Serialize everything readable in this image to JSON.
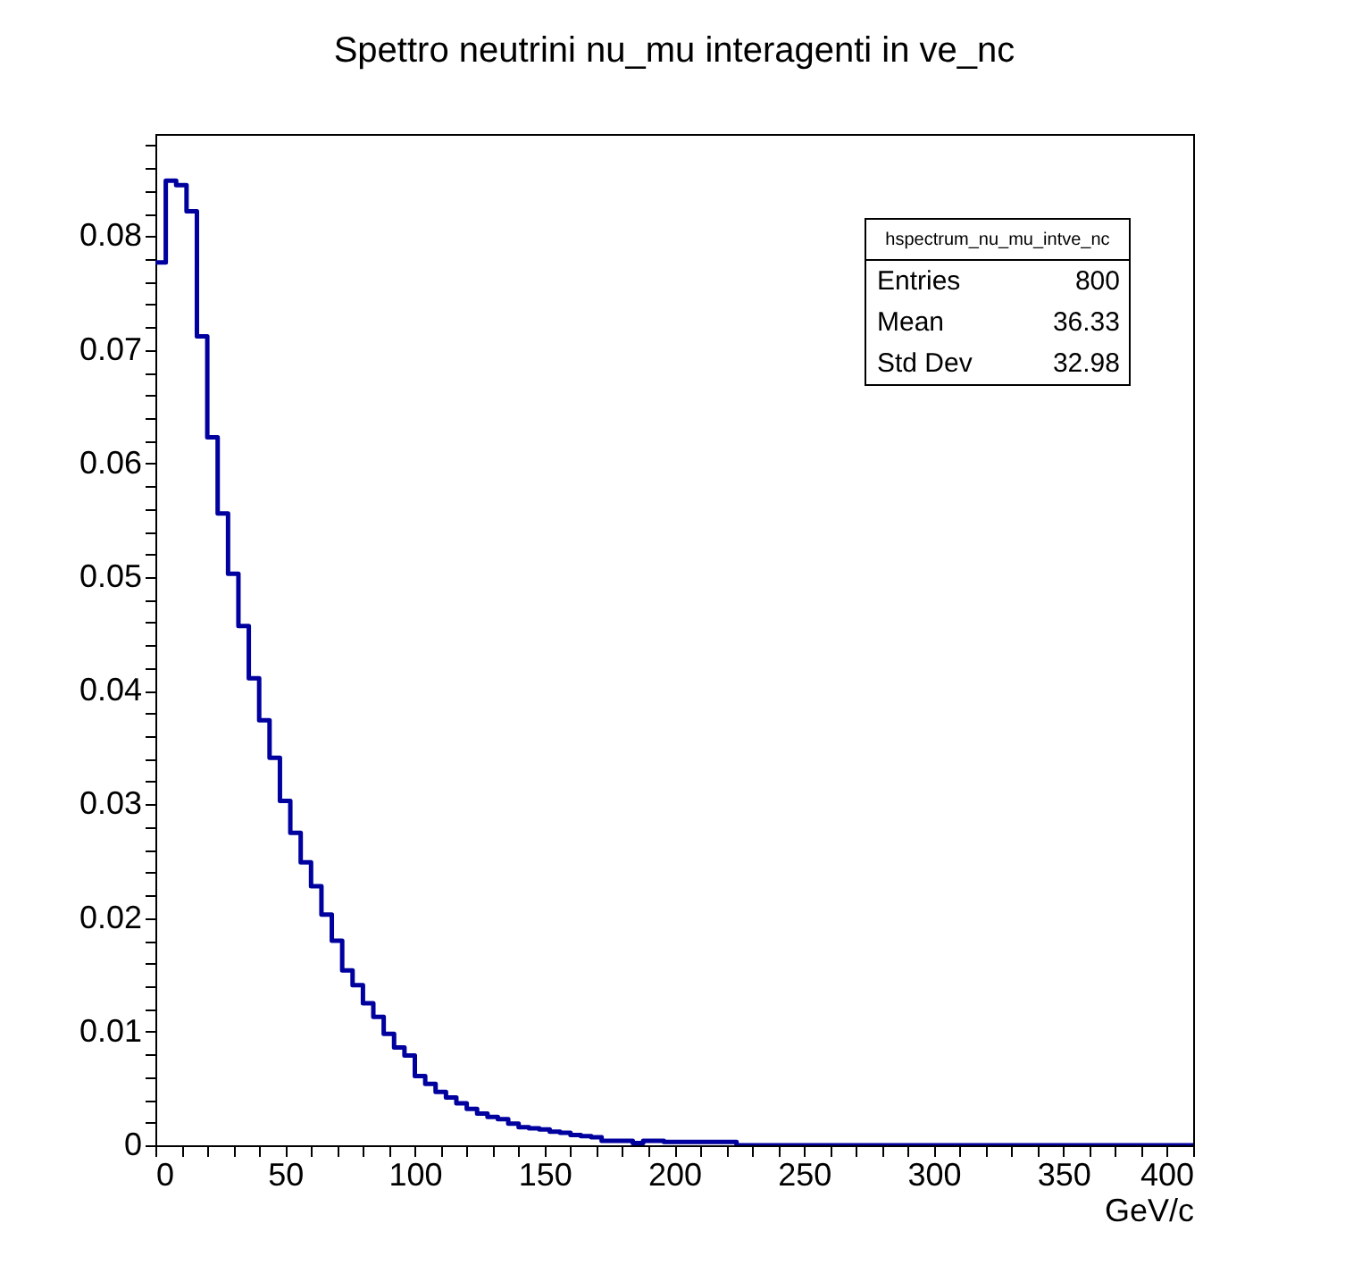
{
  "chart_data": {
    "type": "histogram",
    "title": "Spettro neutrini nu_mu interagenti in ve_nc",
    "xlabel": "GeV/c",
    "color": "#00009f",
    "bins": [
      0,
      4,
      8,
      12,
      16,
      20,
      24,
      28,
      32,
      36,
      40,
      44,
      48,
      52,
      56,
      60,
      64,
      68,
      72,
      76,
      80,
      84,
      88,
      92,
      96,
      100,
      104,
      108,
      112,
      116,
      120,
      124,
      128,
      132,
      136,
      140,
      144,
      148,
      152,
      156,
      160,
      164,
      168,
      172,
      176,
      180,
      184,
      188,
      192,
      196,
      200,
      204,
      208,
      212,
      216,
      220,
      224,
      228,
      232,
      236,
      240,
      244,
      248,
      252,
      256,
      260,
      264,
      268,
      272,
      276,
      280,
      284,
      288,
      292,
      296,
      300,
      304,
      308,
      312,
      316,
      320,
      324,
      328,
      332,
      336,
      340,
      344,
      348,
      352,
      356,
      360,
      364,
      368,
      372,
      376,
      380,
      384,
      388,
      392,
      396,
      400
    ],
    "values": [
      0.0777,
      0.0849,
      0.0845,
      0.0822,
      0.0712,
      0.0623,
      0.0556,
      0.0503,
      0.0457,
      0.0411,
      0.0374,
      0.0341,
      0.0303,
      0.0275,
      0.0249,
      0.0228,
      0.0203,
      0.018,
      0.0154,
      0.0141,
      0.0125,
      0.0113,
      0.0098,
      0.0086,
      0.0079,
      0.0061,
      0.0054,
      0.0047,
      0.0042,
      0.0037,
      0.0032,
      0.0028,
      0.0025,
      0.0023,
      0.0019,
      0.0016,
      0.0015,
      0.0014,
      0.0012,
      0.0011,
      0.0009,
      0.0008,
      0.0007,
      0.0004,
      0.0004,
      0.0004,
      0.0002,
      0.0004,
      0.0004,
      0.0003,
      0.0003,
      0.0003,
      0.0003,
      0.0003,
      0.0003,
      0.0003,
      0,
      0,
      0,
      0,
      0,
      0,
      0,
      0,
      0,
      0,
      0,
      0,
      0,
      0,
      0,
      0,
      0,
      0,
      0,
      0,
      0,
      0,
      0,
      0,
      0,
      0,
      0,
      0,
      0,
      0,
      0,
      0,
      0,
      0,
      0,
      0,
      0,
      0,
      0,
      0,
      0,
      0,
      0,
      0
    ],
    "xlim": [
      0,
      400
    ],
    "xticks": [
      0,
      {
        "value": 10,
        "label": null
      },
      {
        "value": 20,
        "label": null
      },
      {
        "value": 30,
        "label": null
      },
      {
        "value": 40,
        "label": null
      },
      50,
      {
        "value": 60,
        "label": null
      },
      {
        "value": 70,
        "label": null
      },
      {
        "value": 80,
        "label": null
      },
      {
        "value": 90,
        "label": null
      },
      100,
      {
        "value": 110,
        "label": null
      },
      {
        "value": 120,
        "label": null
      },
      {
        "value": 130,
        "label": null
      },
      {
        "value": 140,
        "label": null
      },
      150,
      {
        "value": 160,
        "label": null
      },
      {
        "value": 170,
        "label": null
      },
      {
        "value": 180,
        "label": null
      },
      {
        "value": 190,
        "label": null
      },
      200,
      {
        "value": 210,
        "label": null
      },
      {
        "value": 220,
        "label": null
      },
      {
        "value": 230,
        "label": null
      },
      {
        "value": 240,
        "label": null
      },
      250,
      {
        "value": 260,
        "label": null
      },
      {
        "value": 270,
        "label": null
      },
      {
        "value": 280,
        "label": null
      },
      {
        "value": 290,
        "label": null
      },
      300,
      {
        "value": 310,
        "label": null
      },
      {
        "value": 320,
        "label": null
      },
      {
        "value": 330,
        "label": null
      },
      {
        "value": 340,
        "label": null
      },
      350,
      {
        "value": 360,
        "label": null
      },
      {
        "value": 370,
        "label": null
      },
      {
        "value": 380,
        "label": null
      },
      {
        "value": 390,
        "label": null
      },
      400
    ],
    "ylim": [
      0,
      0.089
    ],
    "yticks": [
      0,
      {
        "value": 0.002,
        "label": null
      },
      {
        "value": 0.004,
        "label": null
      },
      {
        "value": 0.006,
        "label": null
      },
      {
        "value": 0.008,
        "label": null
      },
      0.01,
      {
        "value": 0.012,
        "label": null
      },
      {
        "value": 0.014,
        "label": null
      },
      {
        "value": 0.016,
        "label": null
      },
      {
        "value": 0.018,
        "label": null
      },
      0.02,
      {
        "value": 0.022,
        "label": null
      },
      {
        "value": 0.024,
        "label": null
      },
      {
        "value": 0.026,
        "label": null
      },
      {
        "value": 0.028,
        "label": null
      },
      0.03,
      {
        "value": 0.032,
        "label": null
      },
      {
        "value": 0.034,
        "label": null
      },
      {
        "value": 0.036,
        "label": null
      },
      {
        "value": 0.038,
        "label": null
      },
      0.04,
      {
        "value": 0.042,
        "label": null
      },
      {
        "value": 0.044,
        "label": null
      },
      {
        "value": 0.046,
        "label": null
      },
      {
        "value": 0.048,
        "label": null
      },
      0.05,
      {
        "value": 0.052,
        "label": null
      },
      {
        "value": 0.054,
        "label": null
      },
      {
        "value": 0.056,
        "label": null
      },
      {
        "value": 0.058,
        "label": null
      },
      0.06,
      {
        "value": 0.062,
        "label": null
      },
      {
        "value": 0.064,
        "label": null
      },
      {
        "value": 0.066,
        "label": null
      },
      {
        "value": 0.068,
        "label": null
      },
      0.07,
      {
        "value": 0.072,
        "label": null
      },
      {
        "value": 0.074,
        "label": null
      },
      {
        "value": 0.076,
        "label": null
      },
      {
        "value": 0.078,
        "label": null
      },
      0.08,
      {
        "value": 0.082,
        "label": null
      },
      {
        "value": 0.084,
        "label": null
      },
      {
        "value": 0.086,
        "label": null
      },
      {
        "value": 0.088,
        "label": null
      }
    ],
    "grid": false,
    "annotations": [
      "hspectrum_nu_mu_intve_nc",
      "Entries 800",
      "Mean 36.33",
      "Std Dev 32.98"
    ]
  }
}
